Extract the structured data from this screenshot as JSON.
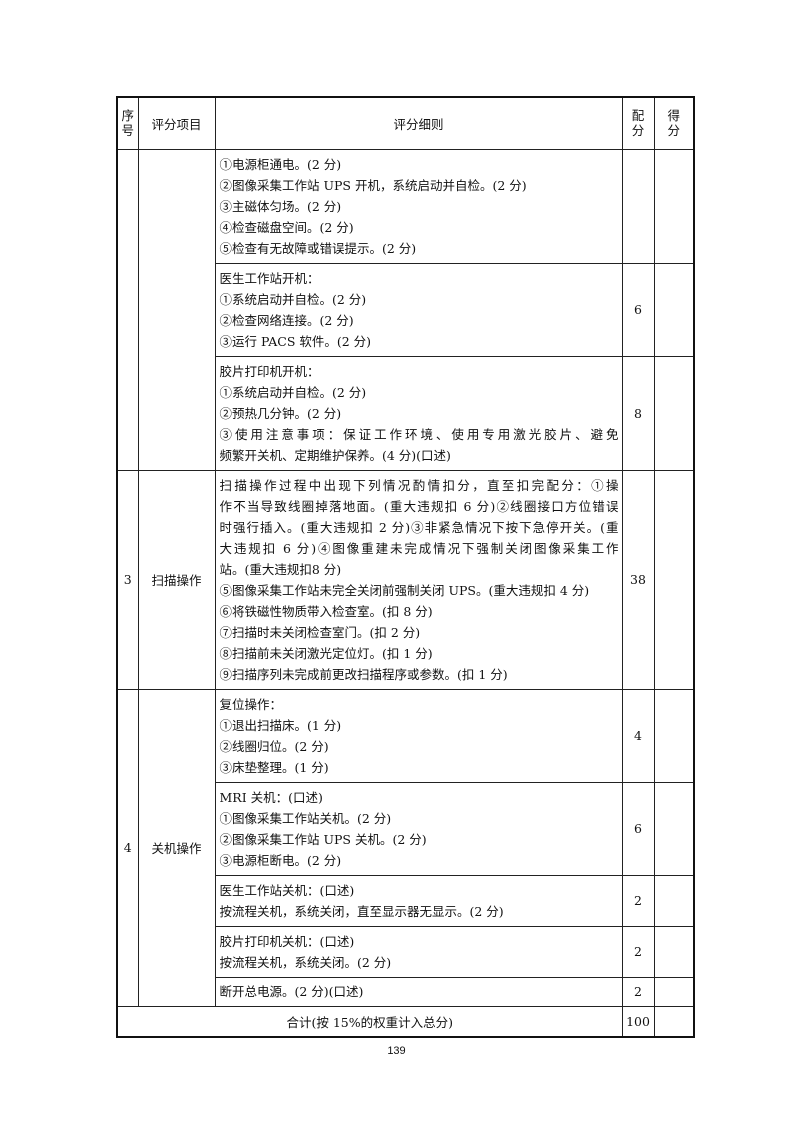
{
  "header": {
    "seq": "序号",
    "item": "评分项目",
    "detail": "评分细则",
    "score": "配分",
    "got": "得分"
  },
  "rows": [
    {
      "lines": [
        "①电源柜通电。(2 分)",
        "②图像采集工作站 UPS 开机，系统启动并自检。(2 分)",
        "③主磁体匀场。(2 分)",
        "④检查磁盘空间。(2 分)",
        "⑤检查有无故障或错误提示。(2 分)"
      ],
      "score": ""
    },
    {
      "lines": [
        "医生工作站开机：",
        "①系统启动并自检。(2 分)",
        "②检查网络连接。(2 分)",
        "③运行 PACS 软件。(2 分)"
      ],
      "score": "6"
    },
    {
      "lines": [
        "胶片打印机开机：",
        "①系统启动并自检。(2 分)",
        "②预热几分钟。(2 分)",
        "③使用注意事项：保证工作环境、使用专用激光胶片、避免",
        "频繁开关机、定期维护保养。(4 分)(口述)"
      ],
      "score": "8"
    },
    {
      "seq": "3",
      "item": "扫描操作",
      "lines": [
        "扫描操作过程中出现下列情况酌情扣分，直至扣完配分：①操",
        "作不当导致线圈掉落地面。(重大违规扣 6 分)②线圈接口方位错误",
        "时强行插入。(重大违规扣 2 分)③非紧急情况下按下急停开关。(重",
        "大违规扣 6 分)④图像重建未完成情况下强制关闭图像采集工作",
        "站。(重大违规扣8 分)",
        "⑤图像采集工作站未完全关闭前强制关闭 UPS。(重大违规扣 4 分)",
        "⑥将铁磁性物质带入检查室。(扣 8 分)",
        "⑦扫描时未关闭检查室门。(扣 2 分)",
        "⑧扫描前未关闭激光定位灯。(扣 1 分)",
        "⑨扫描序列未完成前更改扫描程序或参数。(扣 1 分)"
      ],
      "score": "38"
    },
    {
      "seq": "4",
      "item": "关机操作",
      "lines": [
        "复位操作：",
        "①退出扫描床。(1 分)",
        "②线圈归位。(2 分)",
        "③床垫整理。(1 分)"
      ],
      "score": "4"
    },
    {
      "lines": [
        "MRI 关机：(口述)",
        "①图像采集工作站关机。(2 分)",
        "②图像采集工作站 UPS 关机。(2 分)",
        "③电源柜断电。(2 分)"
      ],
      "score": "6"
    },
    {
      "lines": [
        "医生工作站关机：(口述)",
        "按流程关机，系统关闭，直至显示器无显示。(2 分)"
      ],
      "score": "2"
    },
    {
      "lines": [
        "胶片打印机关机：(口述)",
        "按流程关机，系统关闭。(2 分)"
      ],
      "score": "2"
    },
    {
      "lines": [
        "断开总电源。(2 分)(口述)"
      ],
      "score": "2"
    }
  ],
  "total": {
    "label": "合计(按 15%的权重计入总分)",
    "score": "100"
  },
  "page_number": "139"
}
